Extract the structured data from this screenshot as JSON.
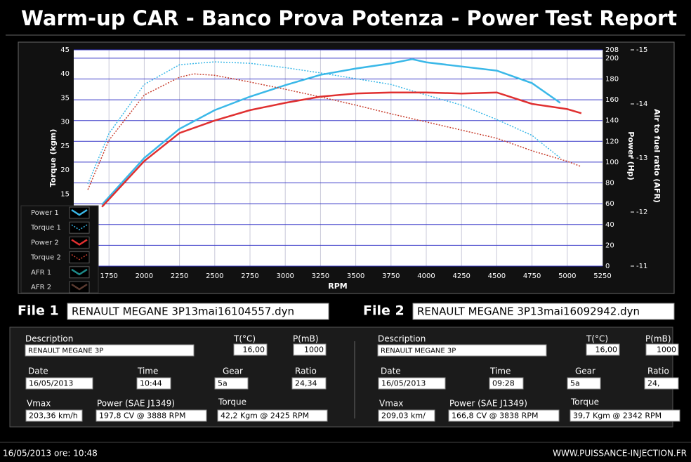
{
  "header": {
    "title": "Warm-up CAR  - Banco Prova Potenza -  Power Test Report"
  },
  "chart_data": {
    "type": "line",
    "x_label": "RPM",
    "y_label": "Torque (kgm)",
    "y2_label": "Power (Hp)",
    "y3_label": "Air to fuel ratio (AFR)",
    "xlim": [
      1500,
      5250
    ],
    "xticks": [
      1750,
      2000,
      2250,
      2500,
      2750,
      3000,
      3250,
      3500,
      3750,
      4000,
      4250,
      4500,
      4750,
      5000,
      5250
    ],
    "ylim": [
      0,
      45
    ],
    "yticks": [
      15,
      20,
      25,
      30,
      35,
      40,
      45
    ],
    "y2lim": [
      0,
      208
    ],
    "y2ticks": [
      0,
      20,
      40,
      60,
      80,
      100,
      120,
      140,
      160,
      180,
      200,
      208
    ],
    "y3lim": [
      -11,
      -15
    ],
    "y3ticks": [
      -11,
      -12,
      -13,
      -14,
      -15
    ],
    "series": [
      {
        "name": "Power 1",
        "color": "#3ab8e8",
        "style": "solid",
        "axis": "y2",
        "x": [
          1700,
          2000,
          2250,
          2500,
          2750,
          3000,
          3250,
          3500,
          3750,
          3900,
          4000,
          4250,
          4500,
          4750,
          4950
        ],
        "values": [
          59,
          104,
          132,
          150,
          163,
          174,
          184,
          190,
          195,
          199,
          196,
          192,
          188,
          176,
          157
        ]
      },
      {
        "name": "Torque 1",
        "color": "#3ab8e8",
        "style": "dotted",
        "axis": "y",
        "x": [
          1600,
          1750,
          2000,
          2250,
          2500,
          2750,
          3000,
          3250,
          3500,
          3750,
          4000,
          4250,
          4500,
          4750,
          4950
        ],
        "values": [
          17.1,
          27.6,
          37.8,
          41.9,
          42.5,
          42.2,
          41.3,
          40.2,
          39.0,
          37.8,
          35.6,
          33.5,
          30.5,
          27.2,
          22.5
        ]
      },
      {
        "name": "Power 2",
        "color": "#e03030",
        "style": "solid",
        "axis": "y2",
        "x": [
          1700,
          2000,
          2250,
          2500,
          2750,
          3000,
          3250,
          3500,
          3750,
          4000,
          4250,
          4500,
          4750,
          5000,
          5100
        ],
        "values": [
          57,
          101,
          128,
          140,
          150,
          157,
          163,
          166,
          167,
          167,
          166,
          167,
          156,
          151,
          147
        ]
      },
      {
        "name": "Torque 2",
        "color": "#c84030",
        "style": "dotted",
        "axis": "y",
        "x": [
          1600,
          1750,
          2000,
          2250,
          2350,
          2500,
          2750,
          3000,
          3250,
          3500,
          3750,
          4000,
          4250,
          4500,
          4750,
          5000,
          5100
        ],
        "values": [
          15.9,
          26.2,
          35.6,
          39.3,
          40.0,
          39.7,
          38.3,
          36.8,
          35.2,
          33.5,
          31.7,
          30.0,
          28.3,
          26.6,
          24.0,
          21.8,
          20.7
        ]
      },
      {
        "name": "AFR 1",
        "color": "#1e8a8a",
        "style": "solid",
        "axis": "y3",
        "x": [],
        "values": []
      },
      {
        "name": "AFR 2",
        "color": "#5a3a30",
        "style": "solid",
        "axis": "y3",
        "x": [],
        "values": []
      }
    ]
  },
  "files": [
    {
      "label": "File 1",
      "filename": "RENAULT MEGANE 3P13mai16104557.dyn",
      "fields": [
        {
          "label": "Description",
          "value": "RENAULT MEGANE 3P"
        },
        {
          "label": "T(°C)",
          "value": "16,00"
        },
        {
          "label": "P(mB)",
          "value": "1000"
        },
        {
          "label": "Date",
          "value": "16/05/2013"
        },
        {
          "label": "Time",
          "value": "10:44"
        },
        {
          "label": "Gear",
          "value": "5a"
        },
        {
          "label": "Ratio",
          "value": "24,34"
        },
        {
          "label": "Vmax",
          "value": "203,36 km/h"
        },
        {
          "label": "Power (SAE J1349)",
          "value": "197,8 CV  @ 3888  RPM"
        },
        {
          "label": "Torque",
          "value": "42,2 Kgm  @ 2425  RPM"
        }
      ]
    },
    {
      "label": "File 2",
      "filename": "RENAULT MEGANE 3P13mai16092942.dyn",
      "fields": [
        {
          "label": "Description",
          "value": "RENAULT MEGANE 3P"
        },
        {
          "label": "T(°C)",
          "value": "16,00"
        },
        {
          "label": "P(mB)",
          "value": "1000"
        },
        {
          "label": "Date",
          "value": "16/05/2013"
        },
        {
          "label": "Time",
          "value": "09:28"
        },
        {
          "label": "Gear",
          "value": "5a"
        },
        {
          "label": "Ratio",
          "value": "24,"
        },
        {
          "label": "Vmax",
          "value": "209,03 km/"
        },
        {
          "label": "Power (SAE J1349)",
          "value": "166,8 CV  @ 3838  RPM"
        },
        {
          "label": "Torque",
          "value": "39,7 Kgm  @ 2342  RPM"
        }
      ]
    }
  ],
  "footer": {
    "timestamp": "16/05/2013  ore: 10:48",
    "website": "WWW.PUISSANCE-INJECTION.FR"
  }
}
